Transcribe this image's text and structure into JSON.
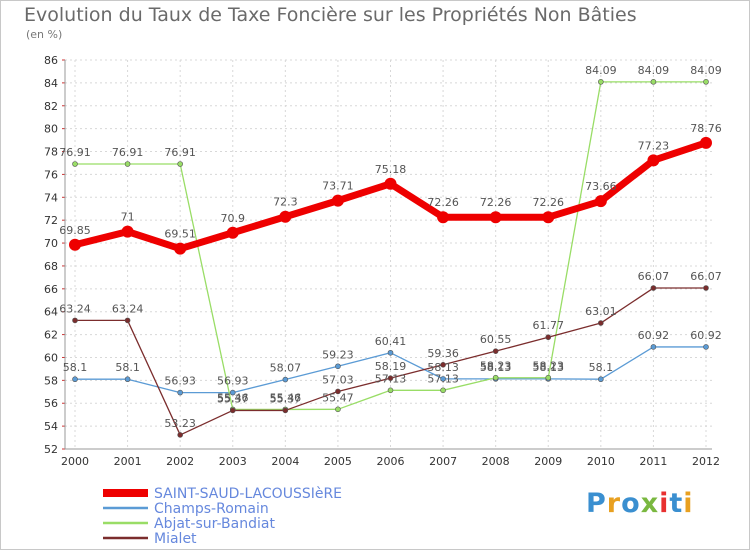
{
  "title": "Evolution du Taux de Taxe Foncière sur les Propriétés Non Bâties",
  "unit": "(en %)",
  "logo": {
    "text": "Proxiti",
    "colors": [
      "#3a8fd0",
      "#e8a020",
      "#3a8fd0",
      "#7ab840",
      "#e83030",
      "#3a8fd0",
      "#e8a020"
    ]
  },
  "chart_data": {
    "type": "line",
    "title": "Evolution du Taux de Taxe Foncière sur les Propriétés Non Bâties",
    "ylabel": "(en %)",
    "xlabel": "",
    "x": [
      "2000",
      "2001",
      "2002",
      "2003",
      "2004",
      "2005",
      "2006",
      "2007",
      "2008",
      "2009",
      "2010",
      "2011",
      "2012"
    ],
    "ylim": [
      52,
      86
    ],
    "yticks": [
      "52",
      "54",
      "56",
      "58",
      "60",
      "62",
      "64",
      "66",
      "68",
      "70",
      "72",
      "74",
      "76",
      "78",
      "80",
      "82",
      "84",
      "86"
    ],
    "grid": true,
    "legend": "bottom-left",
    "series": [
      {
        "name": "Champs-Romain",
        "color": "#5b9bd5",
        "width": 1.3,
        "dot": 5,
        "values": [
          58.1,
          58.1,
          56.93,
          56.93,
          58.07,
          59.23,
          60.41,
          58.13,
          58.13,
          58.13,
          58.1,
          60.92,
          60.92
        ],
        "labels": [
          "58.1",
          "58.1",
          "56.93",
          "56.93",
          "58.07",
          "59.23",
          "60.41",
          "58.13",
          "58.13",
          "58.13",
          "58.1",
          "60.92",
          "60.92"
        ]
      },
      {
        "name": "Abjat-sur-Bandiat",
        "color": "#99dd66",
        "width": 1.3,
        "dot": 5,
        "values": [
          76.91,
          76.91,
          76.91,
          55.46,
          55.46,
          55.47,
          57.13,
          57.13,
          58.23,
          58.23,
          84.09,
          84.09,
          84.09
        ],
        "labels": [
          "76.91",
          "76.91",
          "76.91",
          "55.46",
          "55.46",
          "55.47",
          "57.13",
          "57.13",
          "58.23",
          "58.23",
          "84.09",
          "84.09",
          "84.09"
        ]
      },
      {
        "name": "Mialet",
        "color": "#7b2d2d",
        "width": 1.3,
        "dot": 5,
        "values": [
          63.24,
          63.24,
          53.23,
          55.37,
          55.37,
          57.03,
          58.19,
          59.36,
          60.55,
          61.77,
          63.01,
          66.07,
          66.07
        ],
        "labels": [
          "63.24",
          "63.24",
          "53.23",
          "55.37",
          "55.37",
          "57.03",
          "58.19",
          "59.36",
          "60.55",
          "61.77",
          "63.01",
          "66.07",
          "66.07"
        ]
      },
      {
        "name": "SAINT-SAUD-LACOUSSIèRE",
        "color": "#ee0000",
        "width": 7,
        "dot": 12,
        "values": [
          69.85,
          71,
          69.51,
          70.9,
          72.3,
          73.71,
          75.18,
          72.26,
          72.26,
          72.26,
          73.66,
          77.23,
          78.76
        ],
        "labels": [
          "69.85",
          "71",
          "69.51",
          "70.9",
          "72.3",
          "73.71",
          "75.18",
          "72.26",
          "72.26",
          "72.26",
          "73.66",
          "77.23",
          "78.76"
        ]
      }
    ],
    "legend_order": [
      "SAINT-SAUD-LACOUSSIèRE",
      "Champs-Romain",
      "Abjat-sur-Bandiat",
      "Mialet"
    ]
  }
}
